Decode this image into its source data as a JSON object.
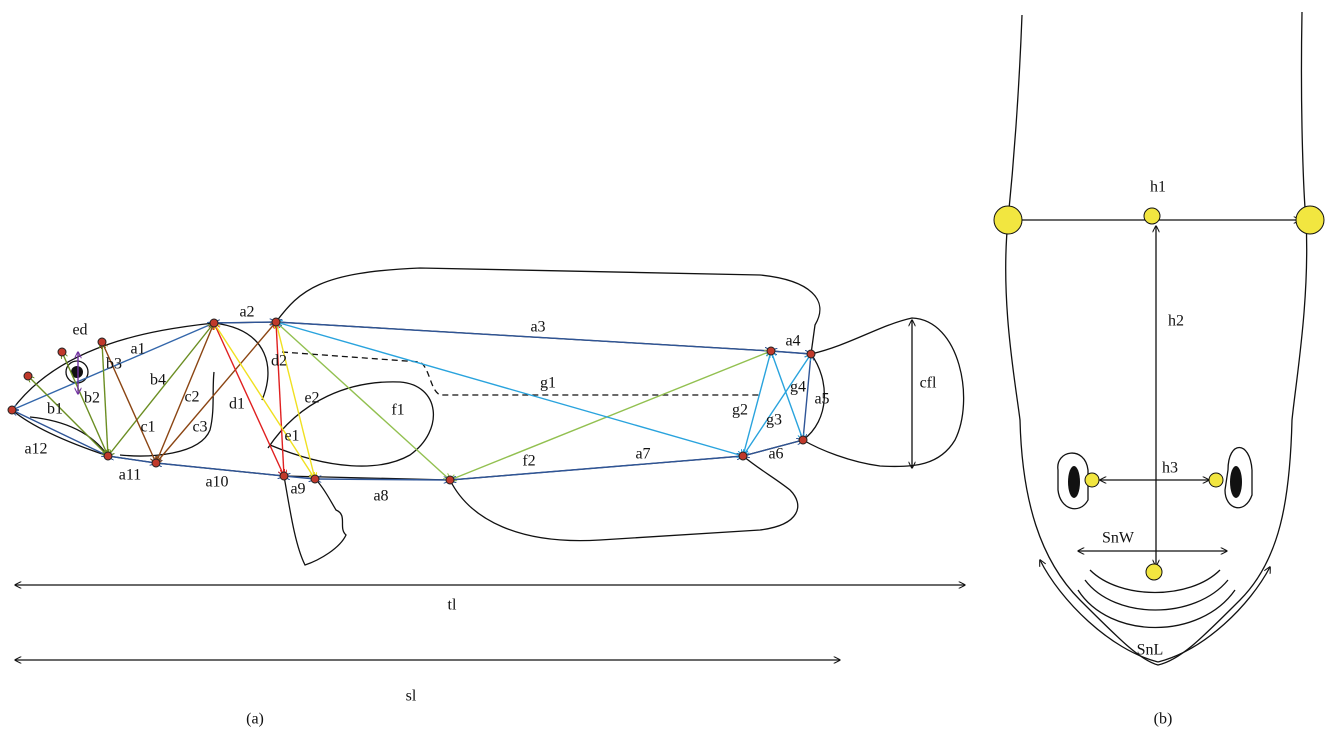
{
  "panel_a": {
    "labels": [
      "ed",
      "a1",
      "a2",
      "a3",
      "a4",
      "a5",
      "a6",
      "a7",
      "a8",
      "a9",
      "a10",
      "a11",
      "a12",
      "b1",
      "b2",
      "b3",
      "b4",
      "c1",
      "c2",
      "c3",
      "d1",
      "d2",
      "e1",
      "e2",
      "f1",
      "f2",
      "g1",
      "g2",
      "g3",
      "g4",
      "cfl",
      "tl",
      "sl"
    ],
    "caption": "(a)"
  },
  "panel_b": {
    "labels": [
      "h1",
      "h2",
      "h3",
      "SnW",
      "SnL"
    ],
    "caption": "(b)"
  }
}
